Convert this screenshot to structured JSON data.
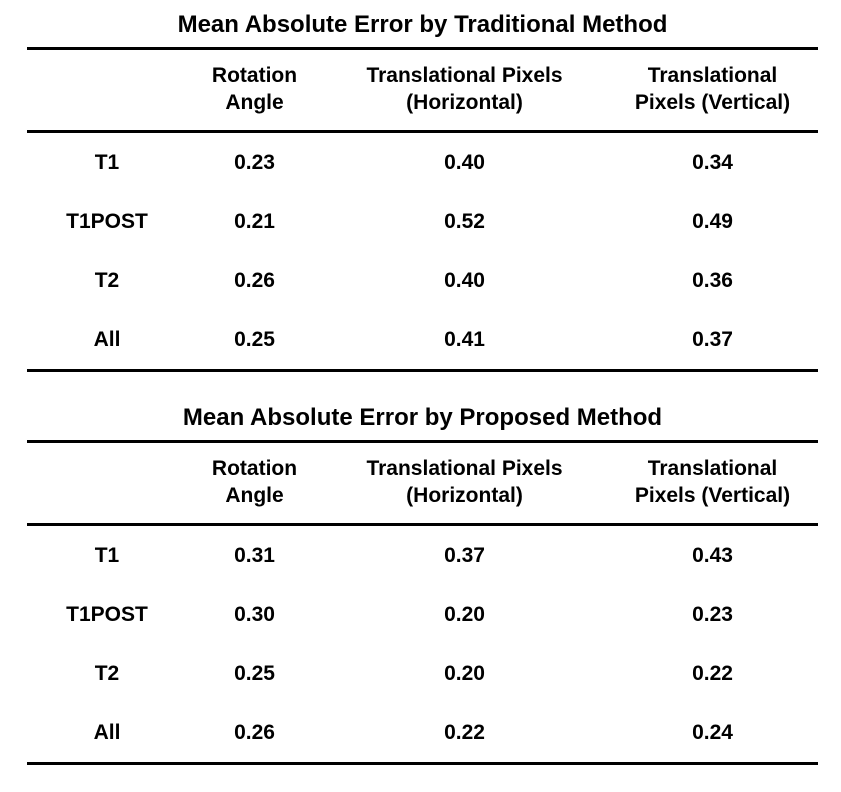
{
  "page": {
    "background_color": "#ffffff",
    "text_color": "#000000",
    "rule_color": "#000000"
  },
  "tables": [
    {
      "title": "Mean Absolute Error by Traditional Method",
      "columns": [
        {
          "line1": "Rotation",
          "line2": "Angle"
        },
        {
          "line1": "Translational Pixels",
          "line2": "(Horizontal)"
        },
        {
          "line1": "Translational",
          "line2": "Pixels (Vertical)"
        }
      ],
      "rows": [
        {
          "label": "T1",
          "values": [
            "0.23",
            "0.40",
            "0.34"
          ]
        },
        {
          "label": "T1POST",
          "values": [
            "0.21",
            "0.52",
            "0.49"
          ]
        },
        {
          "label": "T2",
          "values": [
            "0.26",
            "0.40",
            "0.36"
          ]
        },
        {
          "label": "All",
          "values": [
            "0.25",
            "0.41",
            "0.37"
          ]
        }
      ]
    },
    {
      "title": "Mean Absolute Error by Proposed Method",
      "columns": [
        {
          "line1": "Rotation",
          "line2": "Angle"
        },
        {
          "line1": "Translational Pixels",
          "line2": "(Horizontal)"
        },
        {
          "line1": "Translational",
          "line2": "Pixels (Vertical)"
        }
      ],
      "rows": [
        {
          "label": "T1",
          "values": [
            "0.31",
            "0.37",
            "0.43"
          ]
        },
        {
          "label": "T1POST",
          "values": [
            "0.30",
            "0.20",
            "0.23"
          ]
        },
        {
          "label": "T2",
          "values": [
            "0.25",
            "0.20",
            "0.22"
          ]
        },
        {
          "label": "All",
          "values": [
            "0.26",
            "0.22",
            "0.24"
          ]
        }
      ]
    }
  ]
}
